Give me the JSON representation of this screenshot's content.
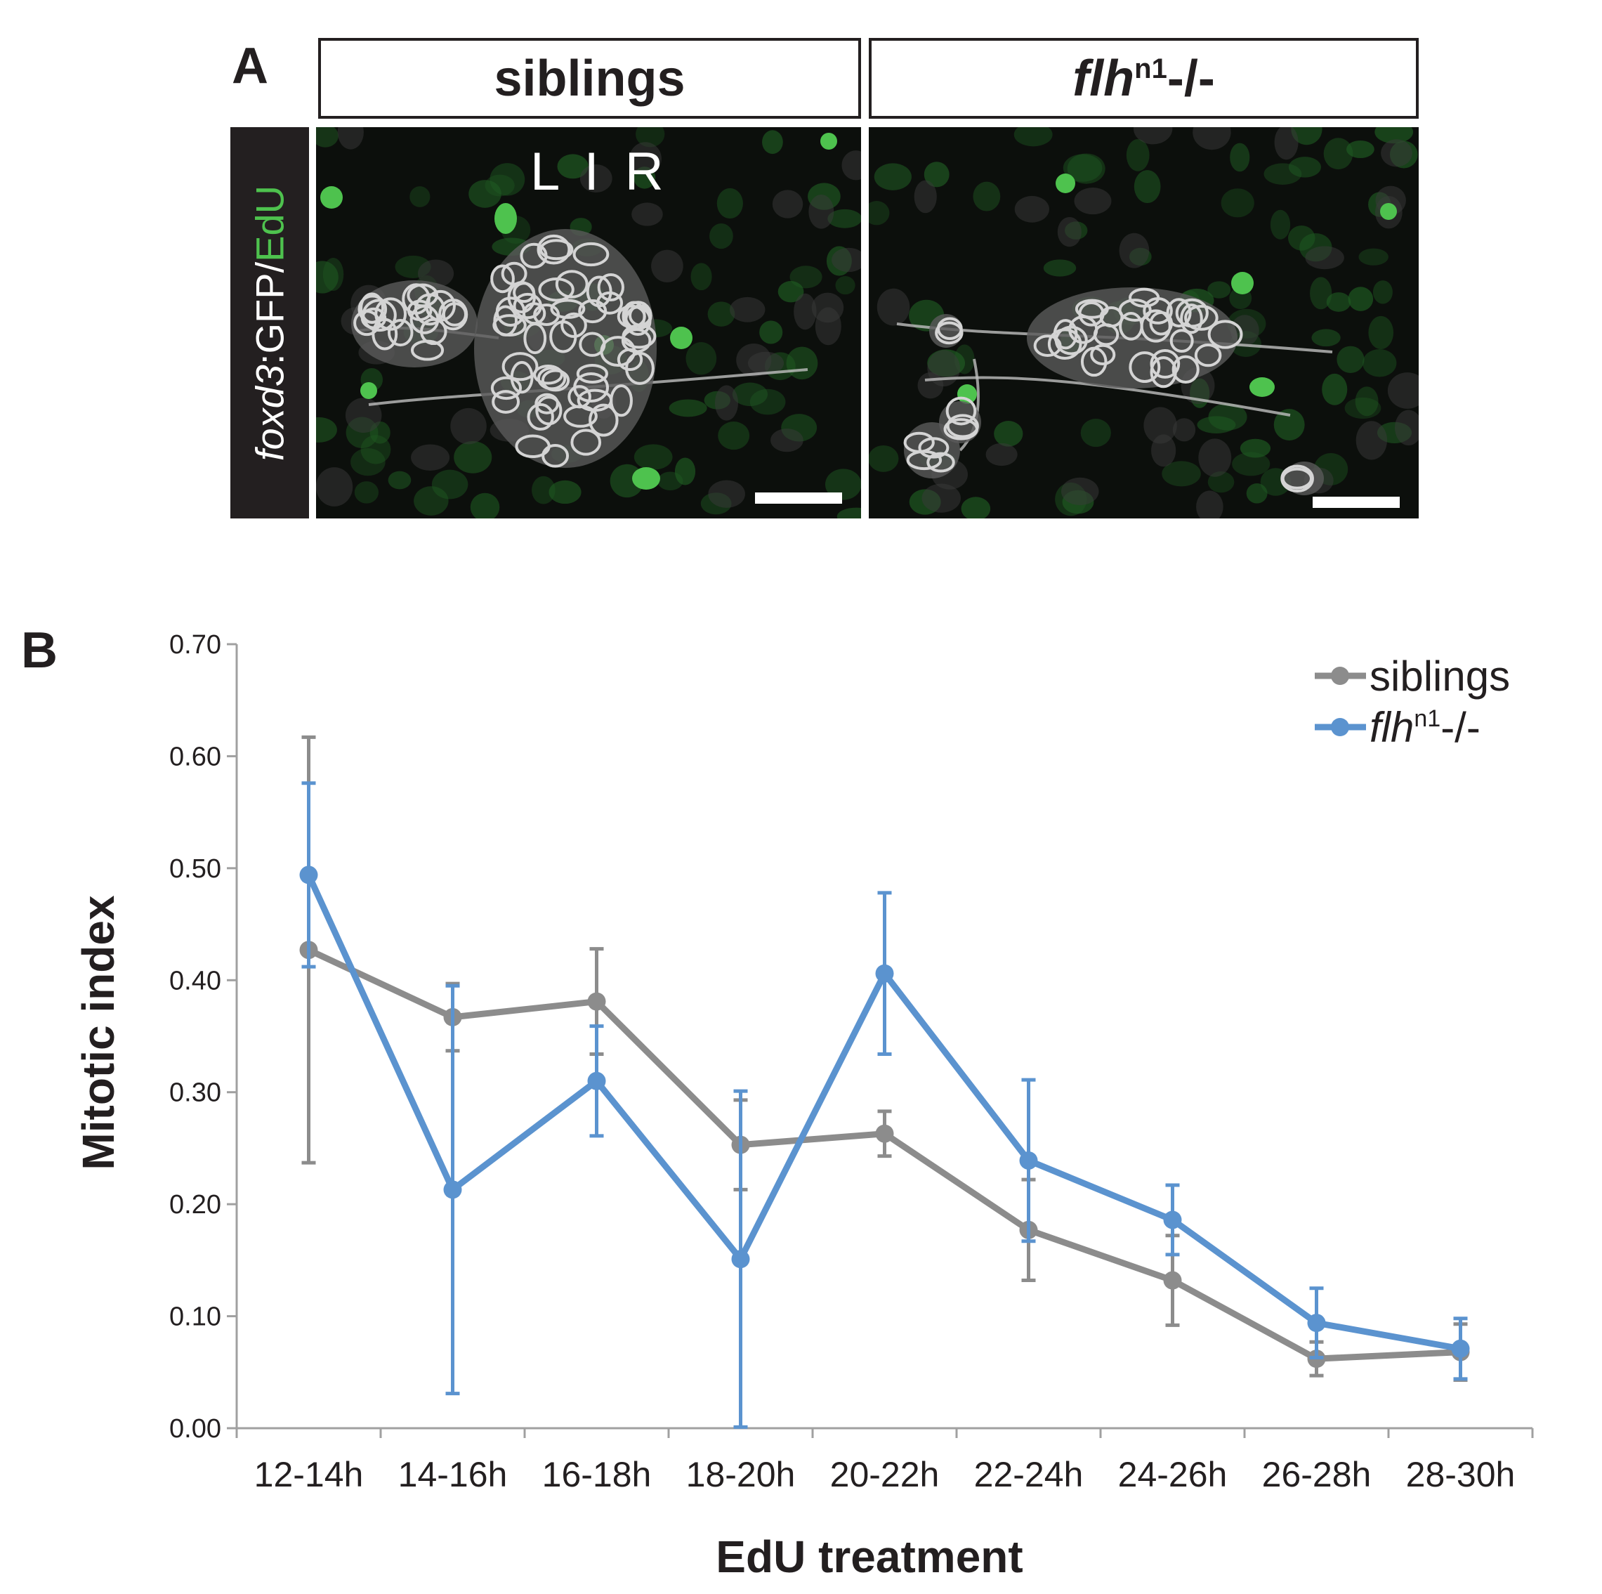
{
  "panel_a": {
    "letter": "A",
    "header_siblings": "siblings",
    "header_mutant_base": "flh",
    "header_mutant_sup": "n1",
    "header_mutant_suffix": "-/-",
    "side_label_italic": "foxd3",
    "side_label_mid": ":GFP/",
    "side_label_green": "EdU",
    "orientation_label": "L I R",
    "colors": {
      "green": "#4ec24e",
      "background": "#0c0f0c",
      "cells": "#d4d4d4"
    }
  },
  "panel_b": {
    "letter": "B"
  },
  "chart_data": {
    "type": "line",
    "title": "",
    "xlabel": "EdU treatment",
    "ylabel": "Mitotic index",
    "categories": [
      "12-14h",
      "14-16h",
      "16-18h",
      "18-20h",
      "20-22h",
      "22-24h",
      "24-26h",
      "26-28h",
      "28-30h"
    ],
    "ylim": [
      0,
      0.7
    ],
    "yticks": [
      "0.00",
      "0.10",
      "0.20",
      "0.30",
      "0.40",
      "0.50",
      "0.60",
      "0.70"
    ],
    "grid": false,
    "legend_position": "top-right",
    "series": [
      {
        "name": "siblings",
        "name_italic": "",
        "name_sup": "",
        "name_suffix": "",
        "color": "#8c8c8c",
        "values": [
          0.427,
          0.367,
          0.381,
          0.253,
          0.263,
          0.177,
          0.132,
          0.062,
          0.068
        ],
        "error": [
          0.19,
          0.03,
          0.047,
          0.04,
          0.02,
          0.045,
          0.04,
          0.015,
          0.025
        ]
      },
      {
        "name": "",
        "name_italic": "flh",
        "name_sup": "n1",
        "name_suffix": "-/-",
        "color": "#5b93cf",
        "values": [
          0.494,
          0.213,
          0.31,
          0.151,
          0.406,
          0.239,
          0.186,
          0.094,
          0.071
        ],
        "error": [
          0.082,
          0.182,
          0.049,
          0.15,
          0.072,
          0.072,
          0.031,
          0.031,
          0.027
        ]
      }
    ]
  }
}
